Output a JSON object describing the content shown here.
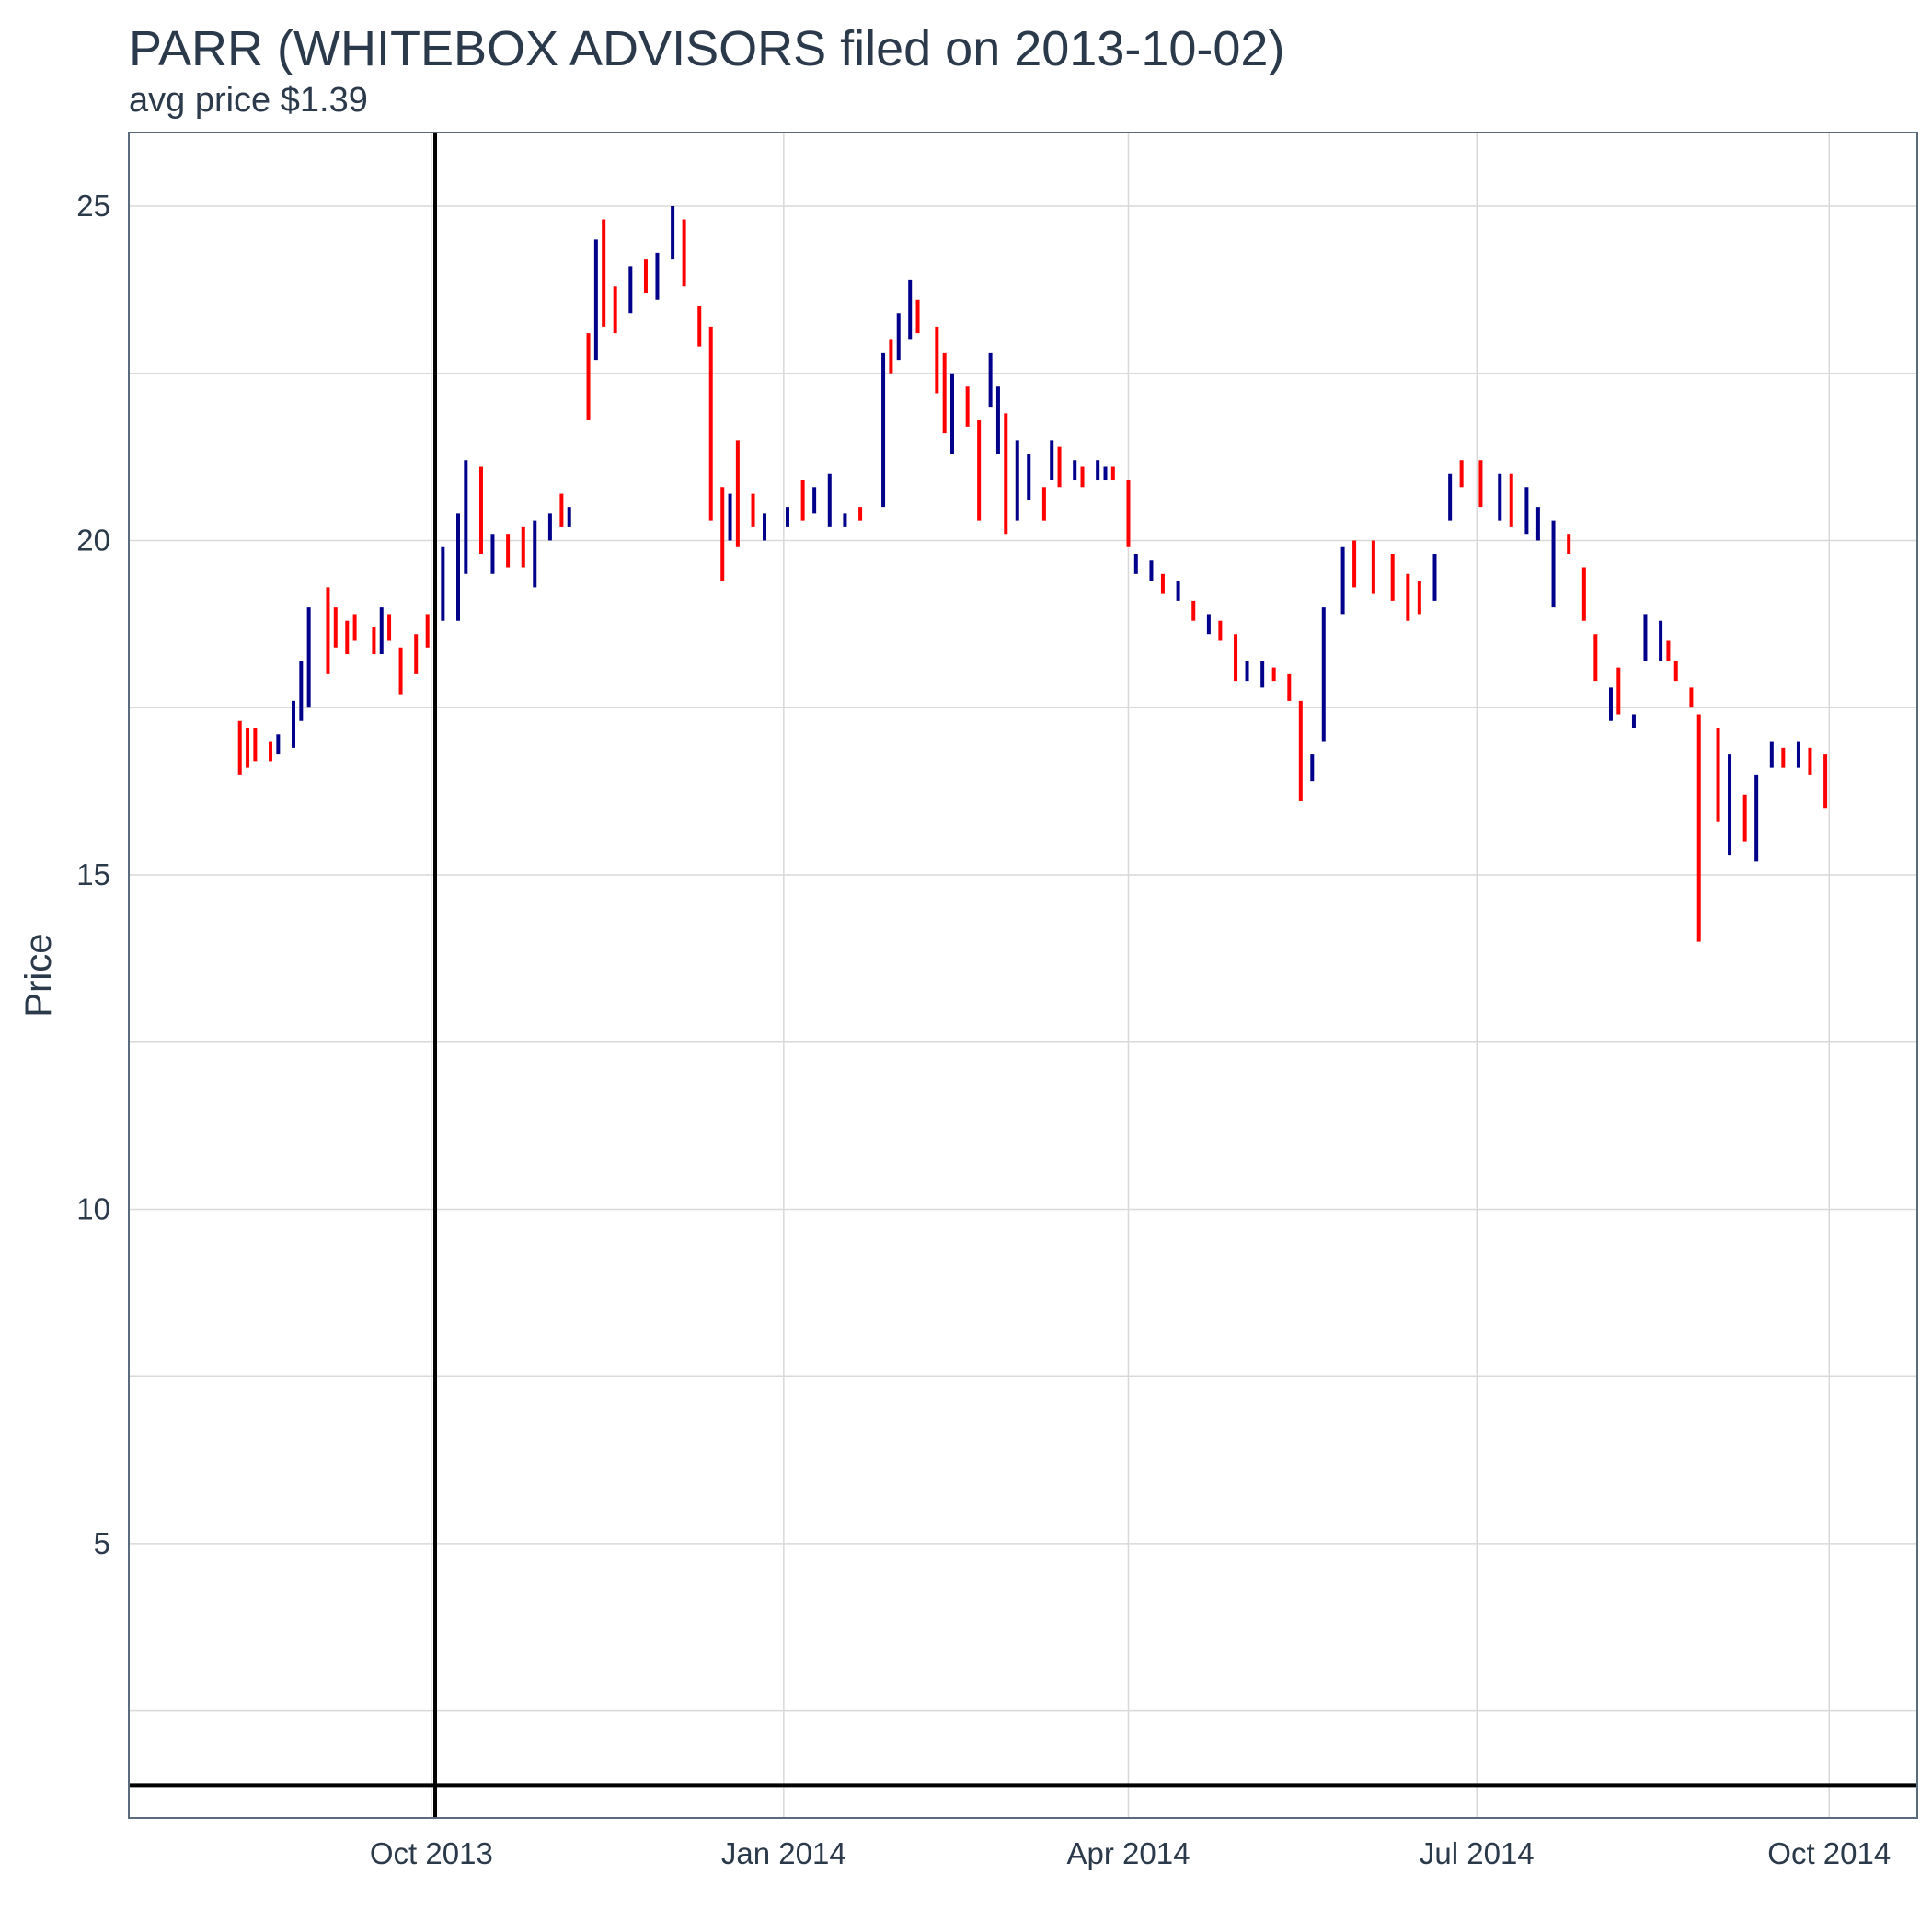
{
  "title": "PARR (WHITEBOX ADVISORS filed on 2013-10-02)",
  "subtitle": "avg price $1.39",
  "colors": {
    "up": "#00008b",
    "down": "#ff0000",
    "reference": "#000000",
    "grid": "#d9d9d9",
    "border": "#5a6b7b",
    "text": "#2b3a4a"
  },
  "chart_data": {
    "type": "line",
    "chart_style": "OHLC price bars (blue = up day, red = down day)",
    "xlabel": "",
    "ylabel": "Price",
    "x_type": "date",
    "xlim": [
      "2013-07-14",
      "2014-10-24"
    ],
    "ylim": [
      0.9,
      26.1
    ],
    "x_ticks": [
      {
        "date": "2013-10-01",
        "label": "Oct 2013"
      },
      {
        "date": "2014-01-01",
        "label": "Jan 2014"
      },
      {
        "date": "2014-04-01",
        "label": "Apr 2014"
      },
      {
        "date": "2014-07-01",
        "label": "Jul 2014"
      },
      {
        "date": "2014-10-01",
        "label": "Oct 2014"
      }
    ],
    "y_ticks": [
      5,
      10,
      15,
      20,
      25
    ],
    "y_minor_gridlines": [
      2.5,
      7.5,
      12.5,
      17.5,
      22.5
    ],
    "grid": true,
    "reference_lines": {
      "vertical_date": "2013-10-02",
      "horizontal_price": 1.39
    },
    "series": [
      {
        "values": [
          [
            "2013-08-12",
            17.3,
            16.5,
            "d"
          ],
          [
            "2013-08-14",
            17.2,
            16.6,
            "d"
          ],
          [
            "2013-08-16",
            17.2,
            16.7,
            "d"
          ],
          [
            "2013-08-20",
            17.0,
            16.7,
            "d"
          ],
          [
            "2013-08-22",
            17.1,
            16.8,
            "u"
          ],
          [
            "2013-08-26",
            17.6,
            16.9,
            "u"
          ],
          [
            "2013-08-28",
            18.2,
            17.3,
            "u"
          ],
          [
            "2013-08-30",
            19.0,
            17.5,
            "u"
          ],
          [
            "2013-09-04",
            19.3,
            18.0,
            "d"
          ],
          [
            "2013-09-06",
            19.0,
            18.4,
            "d"
          ],
          [
            "2013-09-09",
            18.8,
            18.3,
            "d"
          ],
          [
            "2013-09-11",
            18.9,
            18.5,
            "d"
          ],
          [
            "2013-09-16",
            18.7,
            18.3,
            "d"
          ],
          [
            "2013-09-18",
            19.0,
            18.3,
            "u"
          ],
          [
            "2013-09-20",
            18.9,
            18.5,
            "d"
          ],
          [
            "2013-09-23",
            18.4,
            17.7,
            "d"
          ],
          [
            "2013-09-27",
            18.6,
            18.0,
            "d"
          ],
          [
            "2013-09-30",
            18.9,
            18.4,
            "d"
          ],
          [
            "2013-10-02",
            19.4,
            18.7,
            "d"
          ],
          [
            "2013-10-04",
            19.9,
            18.8,
            "u"
          ],
          [
            "2013-10-08",
            20.4,
            18.8,
            "u"
          ],
          [
            "2013-10-10",
            21.2,
            19.5,
            "u"
          ],
          [
            "2013-10-14",
            21.1,
            19.8,
            "d"
          ],
          [
            "2013-10-17",
            20.1,
            19.5,
            "u"
          ],
          [
            "2013-10-21",
            20.1,
            19.6,
            "d"
          ],
          [
            "2013-10-25",
            20.2,
            19.6,
            "d"
          ],
          [
            "2013-10-28",
            20.3,
            19.3,
            "u"
          ],
          [
            "2013-11-01",
            20.4,
            20.0,
            "u"
          ],
          [
            "2013-11-04",
            20.7,
            20.2,
            "d"
          ],
          [
            "2013-11-06",
            20.5,
            20.2,
            "u"
          ],
          [
            "2013-11-11",
            23.1,
            21.8,
            "d"
          ],
          [
            "2013-11-13",
            24.5,
            22.7,
            "u"
          ],
          [
            "2013-11-15",
            24.8,
            23.2,
            "d"
          ],
          [
            "2013-11-18",
            23.8,
            23.1,
            "d"
          ],
          [
            "2013-11-22",
            24.1,
            23.4,
            "u"
          ],
          [
            "2013-11-26",
            24.2,
            23.7,
            "d"
          ],
          [
            "2013-11-29",
            24.3,
            23.6,
            "u"
          ],
          [
            "2013-12-03",
            25.0,
            24.2,
            "u"
          ],
          [
            "2013-12-06",
            24.8,
            23.8,
            "d"
          ],
          [
            "2013-12-10",
            23.5,
            22.9,
            "d"
          ],
          [
            "2013-12-13",
            23.2,
            20.3,
            "d"
          ],
          [
            "2013-12-16",
            20.8,
            19.4,
            "d"
          ],
          [
            "2013-12-18",
            20.7,
            20.0,
            "u"
          ],
          [
            "2013-12-20",
            21.5,
            19.9,
            "d"
          ],
          [
            "2013-12-24",
            20.7,
            20.2,
            "d"
          ],
          [
            "2013-12-27",
            20.4,
            20.0,
            "u"
          ],
          [
            "2014-01-02",
            20.5,
            20.2,
            "u"
          ],
          [
            "2014-01-06",
            20.9,
            20.3,
            "d"
          ],
          [
            "2014-01-09",
            20.8,
            20.4,
            "u"
          ],
          [
            "2014-01-13",
            21.0,
            20.2,
            "u"
          ],
          [
            "2014-01-17",
            20.4,
            20.2,
            "u"
          ],
          [
            "2014-01-21",
            20.5,
            20.3,
            "d"
          ],
          [
            "2014-01-27",
            22.8,
            20.5,
            "u"
          ],
          [
            "2014-01-29",
            23.0,
            22.5,
            "d"
          ],
          [
            "2014-01-31",
            23.4,
            22.7,
            "u"
          ],
          [
            "2014-02-03",
            23.9,
            23.0,
            "u"
          ],
          [
            "2014-02-05",
            23.6,
            23.1,
            "d"
          ],
          [
            "2014-02-10",
            23.2,
            22.2,
            "d"
          ],
          [
            "2014-02-12",
            22.8,
            21.6,
            "d"
          ],
          [
            "2014-02-14",
            22.5,
            21.3,
            "u"
          ],
          [
            "2014-02-18",
            22.3,
            21.7,
            "d"
          ],
          [
            "2014-02-21",
            21.8,
            20.3,
            "d"
          ],
          [
            "2014-02-24",
            22.8,
            22.0,
            "u"
          ],
          [
            "2014-02-26",
            22.3,
            21.3,
            "u"
          ],
          [
            "2014-02-28",
            21.9,
            20.1,
            "d"
          ],
          [
            "2014-03-03",
            21.5,
            20.3,
            "u"
          ],
          [
            "2014-03-06",
            21.3,
            20.6,
            "u"
          ],
          [
            "2014-03-10",
            20.8,
            20.3,
            "d"
          ],
          [
            "2014-03-12",
            21.5,
            20.9,
            "u"
          ],
          [
            "2014-03-14",
            21.4,
            20.8,
            "d"
          ],
          [
            "2014-03-18",
            21.2,
            20.9,
            "u"
          ],
          [
            "2014-03-20",
            21.1,
            20.8,
            "d"
          ],
          [
            "2014-03-24",
            21.2,
            20.9,
            "u"
          ],
          [
            "2014-03-26",
            21.1,
            20.9,
            "u"
          ],
          [
            "2014-03-28",
            21.1,
            20.9,
            "d"
          ],
          [
            "2014-04-01",
            20.9,
            19.9,
            "d"
          ],
          [
            "2014-04-03",
            19.8,
            19.5,
            "u"
          ],
          [
            "2014-04-07",
            19.7,
            19.4,
            "u"
          ],
          [
            "2014-04-10",
            19.5,
            19.2,
            "d"
          ],
          [
            "2014-04-14",
            19.4,
            19.1,
            "u"
          ],
          [
            "2014-04-18",
            19.1,
            18.8,
            "d"
          ],
          [
            "2014-04-22",
            18.9,
            18.6,
            "u"
          ],
          [
            "2014-04-25",
            18.8,
            18.5,
            "d"
          ],
          [
            "2014-04-29",
            18.6,
            17.9,
            "d"
          ],
          [
            "2014-05-02",
            18.2,
            17.9,
            "u"
          ],
          [
            "2014-05-06",
            18.2,
            17.8,
            "u"
          ],
          [
            "2014-05-09",
            18.1,
            17.9,
            "d"
          ],
          [
            "2014-05-13",
            18.0,
            17.6,
            "d"
          ],
          [
            "2014-05-16",
            17.6,
            16.1,
            "d"
          ],
          [
            "2014-05-19",
            16.8,
            16.4,
            "u"
          ],
          [
            "2014-05-22",
            19.0,
            17.0,
            "u"
          ],
          [
            "2014-05-27",
            19.9,
            18.9,
            "u"
          ],
          [
            "2014-05-30",
            20.0,
            19.3,
            "d"
          ],
          [
            "2014-06-04",
            20.0,
            19.2,
            "d"
          ],
          [
            "2014-06-09",
            19.8,
            19.1,
            "d"
          ],
          [
            "2014-06-13",
            19.5,
            18.8,
            "d"
          ],
          [
            "2014-06-16",
            19.4,
            18.9,
            "d"
          ],
          [
            "2014-06-20",
            19.8,
            19.1,
            "u"
          ],
          [
            "2014-06-24",
            21.0,
            20.3,
            "u"
          ],
          [
            "2014-06-27",
            21.2,
            20.8,
            "d"
          ],
          [
            "2014-07-02",
            21.2,
            20.5,
            "d"
          ],
          [
            "2014-07-07",
            21.0,
            20.3,
            "u"
          ],
          [
            "2014-07-10",
            21.0,
            20.2,
            "d"
          ],
          [
            "2014-07-14",
            20.8,
            20.1,
            "u"
          ],
          [
            "2014-07-17",
            20.5,
            20.0,
            "u"
          ],
          [
            "2014-07-21",
            20.3,
            19.0,
            "u"
          ],
          [
            "2014-07-25",
            20.1,
            19.8,
            "d"
          ],
          [
            "2014-07-29",
            19.6,
            18.8,
            "d"
          ],
          [
            "2014-08-01",
            18.6,
            17.9,
            "d"
          ],
          [
            "2014-08-05",
            17.8,
            17.3,
            "u"
          ],
          [
            "2014-08-07",
            18.1,
            17.4,
            "d"
          ],
          [
            "2014-08-11",
            17.4,
            17.2,
            "u"
          ],
          [
            "2014-08-14",
            18.9,
            18.2,
            "u"
          ],
          [
            "2014-08-18",
            18.8,
            18.2,
            "u"
          ],
          [
            "2014-08-20",
            18.5,
            18.2,
            "d"
          ],
          [
            "2014-08-22",
            18.2,
            17.9,
            "d"
          ],
          [
            "2014-08-26",
            17.8,
            17.5,
            "d"
          ],
          [
            "2014-08-28",
            17.4,
            14.0,
            "d"
          ],
          [
            "2014-09-02",
            17.2,
            15.8,
            "d"
          ],
          [
            "2014-09-05",
            16.8,
            15.3,
            "u"
          ],
          [
            "2014-09-09",
            16.2,
            15.5,
            "d"
          ],
          [
            "2014-09-12",
            16.5,
            15.2,
            "u"
          ],
          [
            "2014-09-16",
            17.0,
            16.6,
            "u"
          ],
          [
            "2014-09-19",
            16.9,
            16.6,
            "d"
          ],
          [
            "2014-09-23",
            17.0,
            16.6,
            "u"
          ],
          [
            "2014-09-26",
            16.9,
            16.5,
            "d"
          ],
          [
            "2014-09-30",
            16.8,
            16.0,
            "d"
          ]
        ]
      }
    ]
  }
}
